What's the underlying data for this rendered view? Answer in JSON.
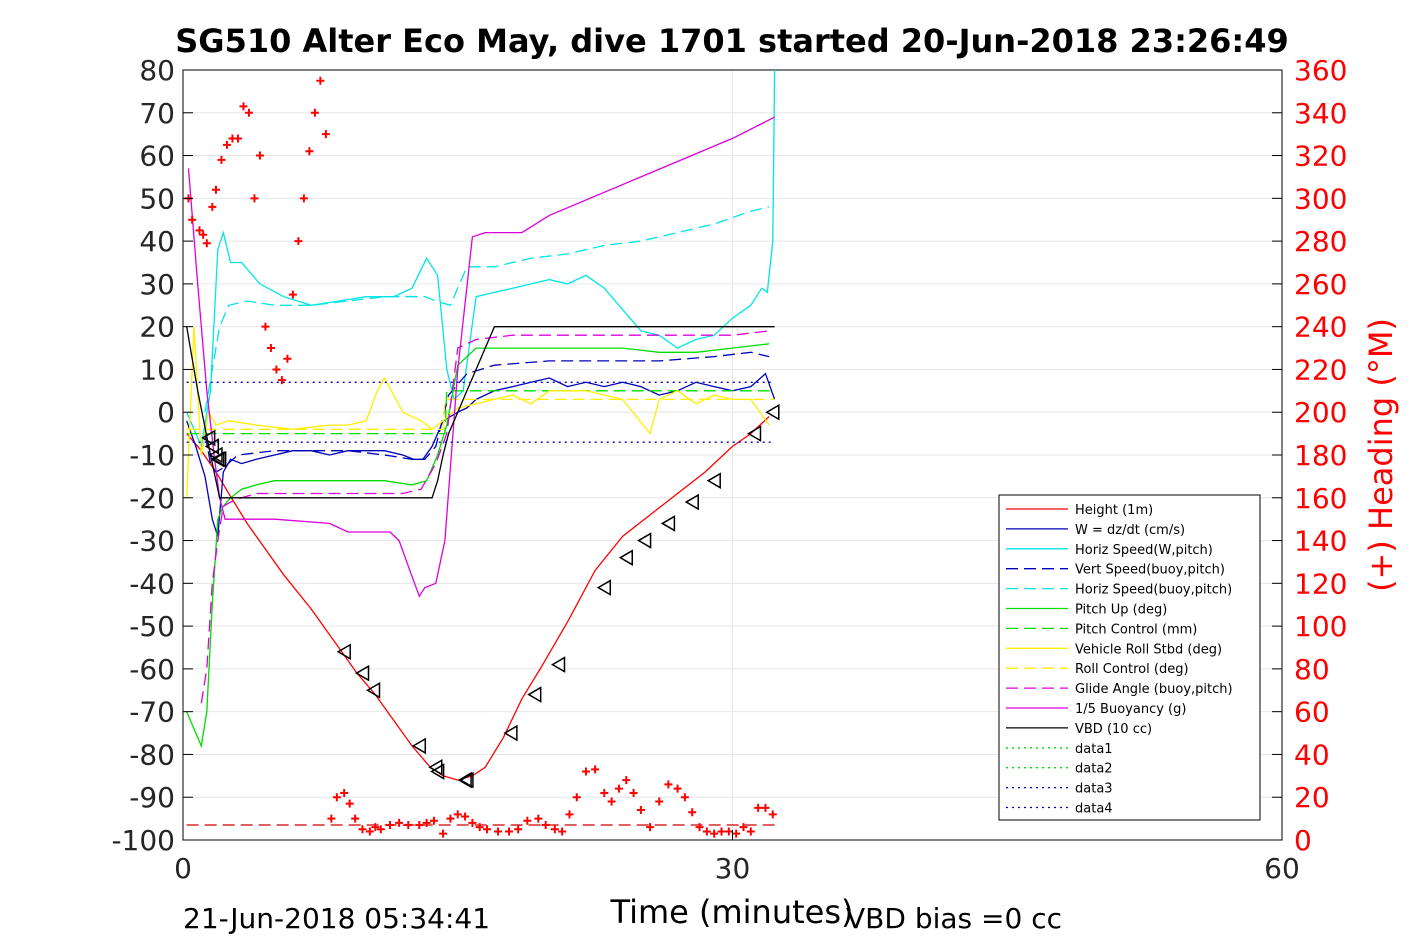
{
  "chart_data": {
    "type": "line",
    "title": "SG510 Alter Eco May, dive 1701 started 20-Jun-2018 23:26:49",
    "xlabel": "Time (minutes)",
    "ylabel_right": "(+) Heading (°M)",
    "xlim": [
      0,
      60
    ],
    "ylim": [
      -100,
      80
    ],
    "y2lim": [
      0,
      360
    ],
    "xticks": [
      "0",
      "30",
      "60"
    ],
    "yticks": [
      "80",
      "70",
      "60",
      "50",
      "40",
      "30",
      "20",
      "10",
      "0",
      "-10",
      "-20",
      "-30",
      "-40",
      "-50",
      "-60",
      "-70",
      "-80",
      "-90",
      "-100"
    ],
    "y2ticks": [
      "360",
      "340",
      "320",
      "300",
      "280",
      "260",
      "240",
      "220",
      "200",
      "180",
      "160",
      "140",
      "120",
      "100",
      "80",
      "60",
      "40",
      "20",
      "0"
    ],
    "grid": true,
    "legend_position": "lower-right",
    "footer_left": "21-Jun-2018 05:34:41",
    "footer_right": "VBD bias =0 cc",
    "series": [
      {
        "name": "Height (1m)",
        "color": "#ff0000",
        "style": "solid",
        "x": [
          0.2,
          1.0,
          1.8,
          2.5,
          3.5,
          4.5,
          5.5,
          7,
          8.5,
          9.5,
          10.5,
          11.5,
          12.5,
          13.5,
          14.2,
          15,
          15.8,
          16.5,
          17.5,
          18.5,
          19.5,
          21,
          22.5,
          24,
          25.5,
          27,
          28.5,
          30,
          31,
          32
        ],
        "y": [
          -5,
          -9,
          -14,
          -19,
          -26,
          -32,
          -38,
          -46,
          -55,
          -61,
          -66,
          -72,
          -78,
          -83,
          -85,
          -86,
          -85,
          -83,
          -76,
          -67,
          -60,
          -49,
          -37,
          -29,
          -24,
          -19,
          -14,
          -8,
          -5,
          -1
        ]
      },
      {
        "name": "W = dz/dt (cm/s)",
        "color": "#0000bb",
        "style": "solid",
        "x": [
          0.2,
          0.7,
          1.2,
          1.6,
          1.9,
          2.2,
          2.6,
          3.2,
          4,
          5,
          6,
          7,
          8,
          9,
          10,
          11,
          12,
          12.6,
          13.1,
          13.6,
          14.2,
          15,
          15.5,
          16,
          17,
          18,
          19,
          20,
          21,
          22,
          23,
          24,
          25,
          26,
          27,
          28,
          29,
          30,
          31,
          31.8,
          32.3
        ],
        "y": [
          -2,
          -8,
          -15,
          -25,
          -29,
          -14,
          -11,
          -12,
          -11,
          -10,
          -9,
          -9,
          -10,
          -9,
          -9,
          -9,
          -10,
          -11,
          -11,
          -8,
          -2,
          0,
          1,
          3,
          5,
          6,
          7,
          8,
          6,
          7,
          6,
          7,
          6,
          4,
          5,
          7,
          6,
          5,
          6,
          9,
          3
        ]
      },
      {
        "name": "Horiz Speed(W,pitch)",
        "color": "#00e5e5",
        "style": "solid",
        "x": [
          0.2,
          1.0,
          1.5,
          1.9,
          2.2,
          2.6,
          3.2,
          4.2,
          5.5,
          7,
          8.5,
          10,
          11.5,
          12.5,
          13.3,
          13.9,
          14.4,
          14.8,
          15.3,
          16,
          17,
          18,
          19,
          20,
          21,
          22,
          23,
          24,
          25,
          26,
          27,
          28,
          29,
          30,
          31,
          31.6,
          31.9,
          32.2,
          32.3
        ],
        "y": [
          0,
          -8,
          5,
          38,
          42,
          35,
          35,
          30,
          27,
          25,
          26,
          27,
          27,
          29,
          36,
          32,
          10,
          3,
          5,
          27,
          28,
          29,
          30,
          31,
          30,
          32,
          29,
          24,
          19,
          18,
          15,
          17,
          18,
          22,
          25,
          29,
          28,
          40,
          80
        ]
      },
      {
        "name": "Vert Speed(buoy,pitch)",
        "color": "#0000bb",
        "style": "dashed",
        "x": [
          1.2,
          1.5,
          1.8,
          2.2,
          3,
          5,
          7,
          9,
          11,
          12.5,
          13.2,
          13.8,
          14.5,
          15.5,
          17,
          20,
          23,
          26,
          29,
          31,
          32
        ],
        "y": [
          -5,
          -12,
          -14,
          -13,
          -10,
          -9,
          -9,
          -9,
          -10,
          -11,
          -11,
          -8,
          4,
          9,
          11,
          12,
          12,
          12,
          13,
          14,
          13
        ]
      },
      {
        "name": "Horiz Speed(buoy,pitch)",
        "color": "#00e5e5",
        "style": "dashed",
        "x": [
          1.2,
          1.6,
          2.0,
          2.5,
          3.5,
          5,
          7,
          9,
          11,
          12.5,
          13.2,
          13.8,
          14.6,
          15.5,
          17,
          19,
          21,
          23,
          25,
          27,
          29,
          31,
          32
        ],
        "y": [
          0,
          10,
          20,
          25,
          26,
          25,
          25,
          26,
          27,
          27,
          27,
          26,
          25,
          34,
          34,
          36,
          37,
          39,
          40,
          42,
          44,
          47,
          48
        ]
      },
      {
        "name": "Pitch Up (deg)",
        "color": "#00dd00",
        "style": "solid",
        "x": [
          0.2,
          0.7,
          1.0,
          1.3,
          1.6,
          1.9,
          2.2,
          2.6,
          3.2,
          4,
          5,
          7,
          9,
          11,
          12.5,
          13.3,
          13.9,
          14.4,
          15,
          16,
          18,
          20,
          22,
          24,
          26,
          28,
          30,
          32
        ],
        "y": [
          -70,
          -75,
          -78,
          -70,
          -45,
          -25,
          -22,
          -20,
          -18,
          -17,
          -16,
          -16,
          -16,
          -16,
          -17,
          -16,
          -10,
          -3,
          11,
          15,
          15,
          15,
          15,
          15,
          14,
          14,
          15,
          16
        ]
      },
      {
        "name": "Pitch Control (mm)",
        "color": "#00dd00",
        "style": "dashed",
        "x": [
          0.2,
          14.3,
          14.4,
          32.3
        ],
        "y": [
          -5,
          -5,
          5,
          5
        ]
      },
      {
        "name": "Vehicle Roll Stbd (deg)",
        "color": "#ffee00",
        "style": "solid",
        "x": [
          0.2,
          0.6,
          1.0,
          1.4,
          1.8,
          2.5,
          4,
          6,
          8,
          9,
          10,
          10.6,
          11,
          12,
          13,
          13.6,
          14.2,
          15,
          16,
          17,
          18,
          19,
          20,
          22,
          24,
          25.5,
          26,
          27,
          28,
          29,
          30,
          31,
          32
        ],
        "y": [
          -20,
          20,
          -10,
          0,
          -3,
          -2,
          -3,
          -4,
          -3,
          -3,
          -2,
          5,
          8,
          0,
          -2,
          -4,
          -2,
          1,
          2,
          3,
          4,
          2,
          5,
          5,
          3,
          -5,
          3,
          5,
          2,
          4,
          3,
          3,
          -3
        ]
      },
      {
        "name": "Roll Control (deg)",
        "color": "#ffee00",
        "style": "dashed",
        "x": [
          0.2,
          14.2,
          14.3,
          32.3
        ],
        "y": [
          -4,
          -4,
          3,
          3
        ]
      },
      {
        "name": "Glide Angle (buoy,pitch)",
        "color": "#dd00dd",
        "style": "dashed",
        "x": [
          1.0,
          1.3,
          1.6,
          1.9,
          2.2,
          2.6,
          3.2,
          4,
          6,
          8,
          10,
          12,
          13,
          13.8,
          14.4,
          15,
          16,
          18,
          20,
          22,
          24,
          26,
          28,
          30,
          32
        ],
        "y": [
          -68,
          -60,
          -40,
          -30,
          -22,
          -21,
          -20,
          -19,
          -19,
          -19,
          -19,
          -19,
          -18,
          -12,
          -5,
          15,
          17,
          18,
          18,
          18,
          18,
          18,
          18,
          18,
          19
        ]
      },
      {
        "name": "1/5 Buoyancy (g)",
        "color": "#dd00dd",
        "style": "solid",
        "x": [
          0.3,
          0.8,
          1.3,
          1.7,
          2.0,
          2.3,
          3,
          5,
          8,
          9,
          10,
          11.3,
          11.8,
          12.3,
          12.9,
          13.2,
          13.8,
          14.3,
          15,
          15.8,
          16.5,
          17.5,
          18.5,
          20,
          25,
          30,
          32.3
        ],
        "y": [
          57,
          30,
          5,
          -10,
          -20,
          -25,
          -25,
          -25,
          -26,
          -28,
          -28,
          -28,
          -30,
          -36,
          -43,
          -41,
          -40,
          -30,
          10,
          41,
          42,
          42,
          42,
          46,
          55,
          64,
          69
        ]
      },
      {
        "name": "VBD (10 cc)",
        "color": "#000000",
        "style": "solid",
        "x": [
          0.2,
          0.8,
          1.5,
          2.0,
          2.4,
          3,
          13.6,
          13.9,
          14.2,
          14.5,
          15,
          15.5,
          16,
          17,
          32.3
        ],
        "y": [
          20,
          5,
          -10,
          -20,
          -20,
          -20,
          -20,
          -16,
          -10,
          -5,
          0,
          5,
          10,
          20,
          20
        ]
      },
      {
        "name": "data1",
        "color": "#00dd00",
        "style": "dotted",
        "x": [],
        "y": []
      },
      {
        "name": "data2",
        "color": "#00dd00",
        "style": "dotted",
        "x": [],
        "y": []
      },
      {
        "name": "data3",
        "color": "#0000bb",
        "style": "dotted",
        "x": [
          0.2,
          32.3
        ],
        "y": [
          7,
          7
        ]
      },
      {
        "name": "data4",
        "color": "#0000bb",
        "style": "dotted",
        "x": [
          0.2,
          32.3
        ],
        "y": [
          -7,
          -7
        ]
      }
    ],
    "vbd_markers": {
      "color": "#000000",
      "x": [
        1.4,
        1.6,
        1.8,
        1.9,
        2.0,
        8.8,
        9.8,
        10.4,
        12.9,
        13.8,
        13.9,
        15.4,
        15.5,
        17.9,
        19.2,
        20.5,
        23.0,
        24.2,
        25.2,
        26.5,
        27.8,
        29.0,
        31.2,
        32.2
      ],
      "y": [
        -6,
        -8,
        -10,
        -11,
        -11,
        -56,
        -61,
        -65,
        -78,
        -83,
        -84,
        -86,
        -86,
        -75,
        -66,
        -59,
        -41,
        -34,
        -30,
        -26,
        -21,
        -16,
        -5,
        0
      ]
    },
    "heading_points": {
      "name": "(+) Heading (°M)",
      "color": "#ff0000",
      "marker": "+",
      "x": [
        0.3,
        0.5,
        0.9,
        1.1,
        1.3,
        1.6,
        1.8,
        2.1,
        2.4,
        2.7,
        3.0,
        3.3,
        3.6,
        3.9,
        4.2,
        4.5,
        4.8,
        5.1,
        5.4,
        5.7,
        6.0,
        6.3,
        6.6,
        6.9,
        7.2,
        7.5,
        7.8,
        8.1,
        8.4,
        8.8,
        9.1,
        9.4,
        9.8,
        10.2,
        10.5,
        10.8,
        11.3,
        11.8,
        12.3,
        12.9,
        13.3,
        13.7,
        14.2,
        14.6,
        15.0,
        15.4,
        15.8,
        16.2,
        16.6,
        17.2,
        17.8,
        18.3,
        18.8,
        19.4,
        19.8,
        20.3,
        20.7,
        21.1,
        21.5,
        22.0,
        22.5,
        23.0,
        23.4,
        23.8,
        24.2,
        24.6,
        25.0,
        25.5,
        26.0,
        26.5,
        27.0,
        27.4,
        27.8,
        28.2,
        28.6,
        29.0,
        29.4,
        29.8,
        30.2,
        30.6,
        31.0,
        31.4,
        31.8,
        32.2
      ],
      "y": [
        300,
        290,
        285,
        283,
        279,
        296,
        304,
        318,
        325,
        328,
        328,
        343,
        340,
        300,
        320,
        240,
        230,
        220,
        215,
        225,
        255,
        280,
        300,
        322,
        340,
        355,
        330,
        10,
        20,
        22,
        17,
        10,
        5,
        4,
        6,
        5,
        7,
        8,
        7,
        7,
        8,
        9,
        3,
        10,
        12,
        11,
        8,
        6,
        5,
        4,
        4,
        5,
        9,
        10,
        7,
        5,
        4,
        12,
        20,
        32,
        33,
        22,
        18,
        24,
        28,
        22,
        14,
        6,
        18,
        26,
        24,
        20,
        13,
        6,
        4,
        3,
        4,
        4,
        3,
        6,
        4,
        15,
        15,
        12
      ]
    },
    "heading_reference_dashed": {
      "color": "#cc0000",
      "y2": 7
    }
  }
}
